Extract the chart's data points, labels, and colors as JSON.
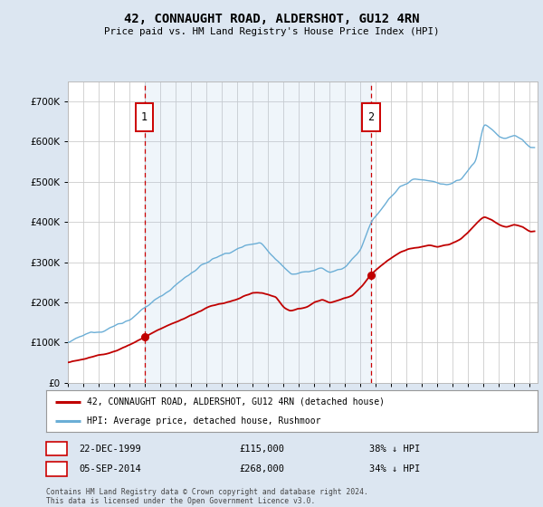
{
  "title": "42, CONNAUGHT ROAD, ALDERSHOT, GU12 4RN",
  "subtitle": "Price paid vs. HM Land Registry's House Price Index (HPI)",
  "legend_line1": "42, CONNAUGHT ROAD, ALDERSHOT, GU12 4RN (detached house)",
  "legend_line2": "HPI: Average price, detached house, Rushmoor",
  "footer": "Contains HM Land Registry data © Crown copyright and database right 2024.\nThis data is licensed under the Open Government Licence v3.0.",
  "annotation1": {
    "label": "1",
    "date": "22-DEC-1999",
    "price": "£115,000",
    "pct": "38% ↓ HPI"
  },
  "annotation2": {
    "label": "2",
    "date": "05-SEP-2014",
    "price": "£268,000",
    "pct": "34% ↓ HPI"
  },
  "hpi_color": "#6baed6",
  "price_color": "#c00000",
  "annotation_color": "#cc0000",
  "shade_color": "#dce6f1",
  "background_color": "#dce6f1",
  "plot_bg_color": "#ffffff",
  "ylim": [
    0,
    750000
  ],
  "yticks": [
    0,
    100000,
    200000,
    300000,
    400000,
    500000,
    600000,
    700000
  ],
  "purchase1_year": 1999.97,
  "purchase1_price": 115000,
  "purchase2_year": 2014.68,
  "purchase2_price": 268000,
  "xmin": 1995,
  "xmax": 2025.5
}
